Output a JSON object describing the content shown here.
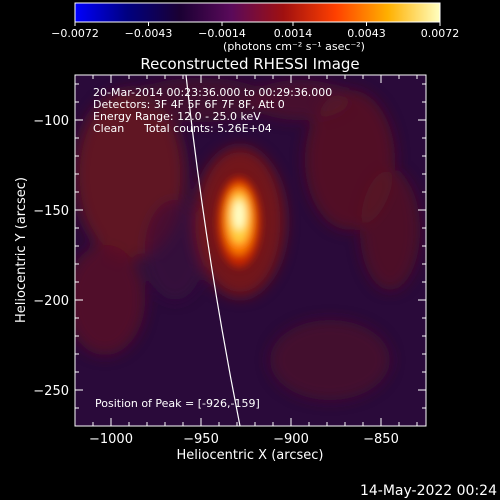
{
  "colorbar": {
    "ticks": [
      "-0.0072",
      "-0.0043",
      "-0.0014",
      "0.0014",
      "0.0043",
      "0.0072"
    ],
    "tick_values": [
      -0.0072,
      -0.0043,
      -0.0014,
      0.0014,
      0.0043,
      0.0072
    ],
    "unit_label": "(photons cm⁻² s⁻¹ asec⁻²)",
    "colors": [
      "#0000ff",
      "#000080",
      "#1a0033",
      "#5a0a5a",
      "#a01010",
      "#ff4000",
      "#ffb000",
      "#ffffc0"
    ]
  },
  "chart_data": {
    "type": "heatmap",
    "title": "Reconstructed RHESSI Image",
    "xlabel": "Heliocentric X (arcsec)",
    "ylabel": "Heliocentric Y (arcsec)",
    "xlim": [
      -1020,
      -825
    ],
    "ylim": [
      -270,
      -75
    ],
    "xticks": [
      -1000,
      -950,
      -900,
      -850
    ],
    "xtick_labels": [
      "-1000",
      "-950",
      "-900",
      "-850"
    ],
    "yticks": [
      -100,
      -150,
      -200,
      -250
    ],
    "ytick_labels": [
      "-100",
      "-150",
      "-200",
      "-250"
    ],
    "peak": [
      -926,
      -159
    ],
    "annotations": [
      "20-Mar-2014 00:23:36.000 to 00:29:36.000",
      "Detectors: 3F 4F 5F 6F 7F 8F, Att 0",
      "Energy Range: 12.0 - 25.0 keV",
      "Clean",
      "Total counts: 5.26E+04"
    ],
    "peak_label": "Position of Peak = [-926,-159]"
  },
  "footer": {
    "date": "14-May-2022 00:24"
  }
}
